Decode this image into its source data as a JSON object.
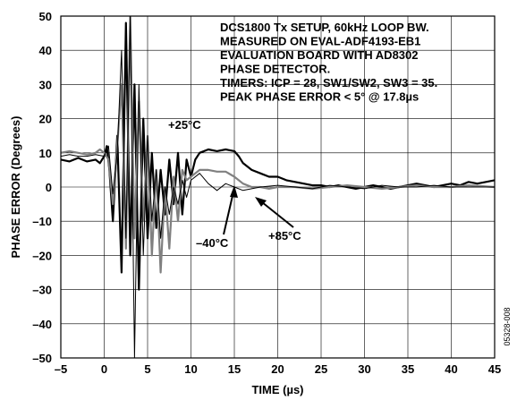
{
  "chart_data": {
    "type": "line",
    "title": "",
    "xlabel": "TIME (µs)",
    "ylabel": "PHASE ERROR (Degrees)",
    "xlim": [
      -5,
      45
    ],
    "ylim": [
      -50,
      50
    ],
    "xticks": [
      -5,
      0,
      5,
      10,
      15,
      20,
      25,
      30,
      35,
      40,
      45
    ],
    "yticks": [
      -50,
      -40,
      -30,
      -20,
      -10,
      0,
      10,
      20,
      30,
      40,
      50
    ],
    "tick_labels_x": [
      "–5",
      "0",
      "5",
      "10",
      "15",
      "20",
      "25",
      "30",
      "35",
      "40",
      "45"
    ],
    "tick_labels_y": [
      "50",
      "40",
      "30",
      "20",
      "10",
      "0",
      "–10",
      "–20",
      "–30",
      "–40",
      "–50"
    ],
    "grid": true,
    "notes": [
      "DCS1800 Tx SETUP, 60kHz LOOP BW.",
      "MEASURED ON EVAL-ADF4193-EB1",
      "EVALUATION BOARD WITH AD8302",
      "PHASE DETECTOR.",
      "TIMERS: ICP = 28, SW1/SW2, SW3 = 35.",
      "PEAK PHASE ERROR < 5° @ 17.8µs"
    ],
    "annotations": [
      {
        "text": "+25°C",
        "x": 12.0,
        "y": 10.5
      },
      {
        "text": "–40°C",
        "x": 13.8,
        "y": -1.5
      },
      {
        "text": "+85°C",
        "x": 17.0,
        "y": -3.0
      }
    ],
    "figure_id": "05328-008",
    "series": [
      {
        "color": "#000000",
        "width": 2.2,
        "x": [
          -5,
          -4,
          -3,
          -2,
          -1,
          -0.5,
          0,
          0.3,
          0.6,
          1,
          1.5,
          2,
          2.5,
          3,
          3.5,
          4,
          4.5,
          5,
          5.5,
          6,
          6.5,
          7,
          7.5,
          8,
          8.5,
          9,
          9.5,
          10,
          10.5,
          11,
          12,
          13,
          14,
          15,
          15.5,
          16,
          17,
          18,
          19,
          20,
          21,
          22,
          23,
          24,
          25,
          26,
          27,
          28,
          29,
          30,
          31,
          32,
          33,
          34,
          35,
          36,
          37,
          38,
          39,
          40,
          41,
          42,
          43,
          44,
          45
        ],
        "y": [
          8,
          7.5,
          8.5,
          7.5,
          8,
          7,
          9,
          12,
          5,
          -10,
          15,
          -25,
          48,
          -20,
          30,
          -30,
          20,
          -15,
          10,
          -12,
          5,
          -8,
          8,
          -5,
          10,
          -8,
          8,
          3,
          8,
          10,
          11,
          10.5,
          11,
          10.5,
          9,
          7,
          5,
          4,
          3,
          3,
          2,
          1.5,
          1,
          0.5,
          0.5,
          0,
          0.5,
          0,
          -0.5,
          0,
          0.5,
          0,
          -0.5,
          0,
          0.5,
          1,
          0.5,
          0,
          0.5,
          1,
          0.5,
          1.5,
          1,
          1.5,
          2
        ]
      },
      {
        "color": "#808080",
        "width": 2.2,
        "x": [
          -5,
          -4,
          -3,
          -2,
          -1,
          -0.5,
          0,
          0.5,
          1,
          1.5,
          2,
          2.5,
          3,
          3.5,
          4,
          4.5,
          5,
          5.5,
          6,
          6.5,
          7,
          7.5,
          8,
          8.5,
          9,
          9.5,
          10,
          11,
          12,
          13,
          14,
          15,
          16,
          17,
          18,
          19,
          20,
          22,
          24,
          26,
          28,
          30,
          32,
          34,
          36,
          38,
          40,
          42,
          45
        ],
        "y": [
          10,
          10.5,
          10,
          9.5,
          10,
          11,
          10,
          8,
          -5,
          12,
          30,
          -18,
          50,
          -15,
          25,
          -10,
          15,
          -20,
          5,
          -25,
          0,
          -18,
          3,
          -10,
          5,
          2,
          3,
          5,
          5,
          4.5,
          4.5,
          3,
          1,
          0,
          0,
          -0.5,
          0,
          0,
          -0.5,
          0,
          0.5,
          0,
          -0.5,
          0,
          0.5,
          0,
          0,
          0.5,
          0
        ]
      },
      {
        "color": "#000000",
        "width": 1.0,
        "x": [
          -5,
          -4,
          -3,
          -2,
          -1,
          0,
          0.5,
          1,
          1.5,
          2,
          2.5,
          3,
          3.5,
          4,
          4.5,
          5,
          5.5,
          6,
          6.5,
          7,
          7.5,
          8,
          8.5,
          9,
          9.5,
          10,
          11,
          12,
          13,
          14,
          15,
          16,
          17,
          18,
          20,
          22,
          24,
          26,
          28,
          30,
          32,
          34,
          36,
          38,
          40,
          42,
          45
        ],
        "y": [
          9,
          9.5,
          9,
          9,
          9.5,
          9,
          12,
          -2,
          10,
          40,
          -15,
          50,
          -50,
          30,
          -20,
          15,
          -10,
          5,
          -15,
          0,
          -8,
          0,
          -5,
          2,
          -3,
          2,
          4,
          1,
          -1,
          1,
          0,
          -1,
          -0.5,
          0,
          0.5,
          0,
          -0.5,
          0.5,
          0,
          -0.5,
          0.5,
          0,
          0,
          0.5,
          0,
          0,
          0
        ]
      }
    ]
  }
}
